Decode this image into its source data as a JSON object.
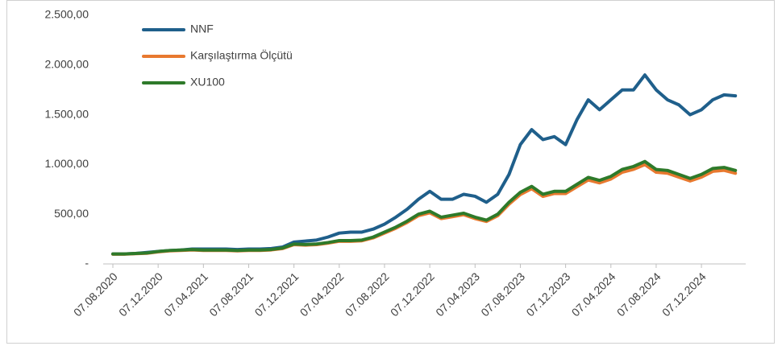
{
  "chart_data": {
    "type": "line",
    "categories": [
      "07.08.2020",
      null,
      null,
      null,
      "07.12.2020",
      null,
      null,
      null,
      "07.04.2021",
      null,
      null,
      null,
      "07.08.2021",
      null,
      null,
      null,
      "07.12.2021",
      null,
      null,
      null,
      "07.04.2022",
      null,
      null,
      null,
      "07.08.2022",
      null,
      null,
      null,
      "07.12.2022",
      null,
      null,
      null,
      "07.04.2023",
      null,
      null,
      null,
      "07.08.2023",
      null,
      null,
      null,
      "07.12.2023",
      null,
      null,
      null,
      "07.04.2024",
      null,
      null,
      null,
      "07.08.2024",
      null,
      null,
      null,
      "07.12.2024",
      null,
      null,
      null
    ],
    "series": [
      {
        "name": "NNF",
        "color": "#1f5f8b",
        "values": [
          100,
          100,
          105,
          115,
          125,
          135,
          140,
          150,
          150,
          150,
          150,
          145,
          150,
          150,
          155,
          170,
          220,
          230,
          240,
          270,
          310,
          320,
          320,
          350,
          400,
          470,
          550,
          650,
          730,
          650,
          650,
          700,
          680,
          620,
          700,
          900,
          1200,
          1350,
          1250,
          1280,
          1200,
          1450,
          1650,
          1550,
          1650,
          1750,
          1750,
          1900,
          1750,
          1650,
          1600,
          1500,
          1550,
          1650,
          1700,
          1690
        ]
      },
      {
        "name": "Karşılaştırma Ölçütü",
        "color": "#e8792f",
        "values": [
          98,
          98,
          103,
          107,
          121,
          131,
          136,
          141,
          136,
          136,
          136,
          131,
          136,
          136,
          141,
          155,
          194,
          189,
          194,
          209,
          228,
          228,
          233,
          262,
          310,
          359,
          417,
          485,
          514,
          456,
          475,
          495,
          456,
          427,
          485,
          601,
          698,
          757,
          679,
          708,
          708,
          776,
          844,
          815,
          854,
          922,
          951,
          999,
          922,
          912,
          873,
          834,
          873,
          931,
          941,
          912
        ]
      },
      {
        "name": "XU100",
        "color": "#2e7a2a",
        "values": [
          100,
          100,
          105,
          110,
          125,
          135,
          140,
          145,
          140,
          140,
          140,
          135,
          140,
          140,
          145,
          160,
          200,
          195,
          200,
          215,
          235,
          235,
          240,
          270,
          320,
          370,
          430,
          500,
          530,
          470,
          490,
          510,
          470,
          440,
          500,
          620,
          720,
          780,
          700,
          730,
          730,
          800,
          870,
          840,
          880,
          950,
          980,
          1030,
          950,
          940,
          900,
          860,
          900,
          960,
          970,
          940
        ]
      }
    ],
    "ylim": [
      0,
      2500
    ],
    "yticks": [
      {
        "value": 0,
        "label": "-"
      },
      {
        "value": 500,
        "label": "500,00"
      },
      {
        "value": 1000,
        "label": "1.000,00"
      },
      {
        "value": 1500,
        "label": "1.500,00"
      },
      {
        "value": 2000,
        "label": "2.000,00"
      },
      {
        "value": 2500,
        "label": "2.500,00"
      }
    ],
    "legend": "top-left"
  }
}
